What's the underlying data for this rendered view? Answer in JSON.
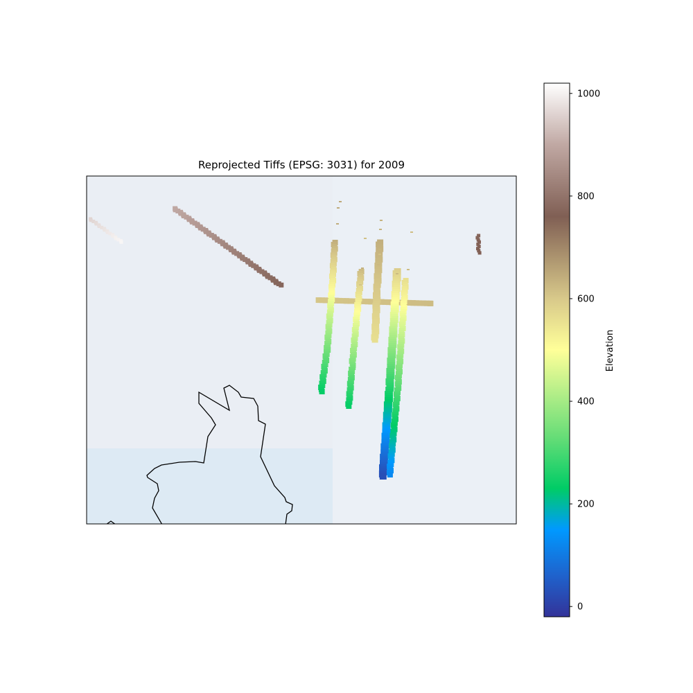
{
  "figure": {
    "title": "Reprojected Tiffs (EPSG: 3031) for 2009"
  },
  "colorbar": {
    "label": "Elevation",
    "min": -20,
    "max": 1020,
    "ticks": [
      0,
      200,
      400,
      600,
      800,
      1000
    ],
    "colormap": "terrain",
    "stops": [
      {
        "value": -20,
        "color": "#333399"
      },
      {
        "value": 60,
        "color": "#1f62cc"
      },
      {
        "value": 150,
        "color": "#0099ff"
      },
      {
        "value": 190,
        "color": "#00b3b3"
      },
      {
        "value": 230,
        "color": "#00cc66"
      },
      {
        "value": 330,
        "color": "#66dd77"
      },
      {
        "value": 500,
        "color": "#ffff99"
      },
      {
        "value": 600,
        "color": "#d8c98a"
      },
      {
        "value": 760,
        "color": "#805f54"
      },
      {
        "value": 900,
        "color": "#c0a8a3"
      },
      {
        "value": 1020,
        "color": "#ffffff"
      }
    ]
  },
  "map": {
    "projection": "EPSG:3031",
    "background_colors": {
      "tile_left": "#eaeef4",
      "tile_right": "#ebf0f6",
      "ocean": "#ddeaf4",
      "coastline": "#000000"
    },
    "elevation_tracks": [
      {
        "name": "track-nw-short",
        "elev_start": 960,
        "elev_end": 1010
      },
      {
        "name": "track-nw-long",
        "elev_start": 900,
        "elev_end": 770
      },
      {
        "name": "track-horizontal",
        "elev_start": 605,
        "elev_end": 620
      },
      {
        "name": "track-vertical-1",
        "elev_start": 640,
        "elev_end": 230
      },
      {
        "name": "track-vertical-2",
        "elev_start": 620,
        "elev_end": 230
      },
      {
        "name": "track-vertical-3",
        "elev_start": 640,
        "elev_end": 560
      },
      {
        "name": "track-vertical-4",
        "elev_start": 590,
        "elev_end": 20
      },
      {
        "name": "track-vertical-5",
        "elev_start": 560,
        "elev_end": 120
      },
      {
        "name": "track-east-spot",
        "elev_start": 770,
        "elev_end": 760
      }
    ]
  }
}
